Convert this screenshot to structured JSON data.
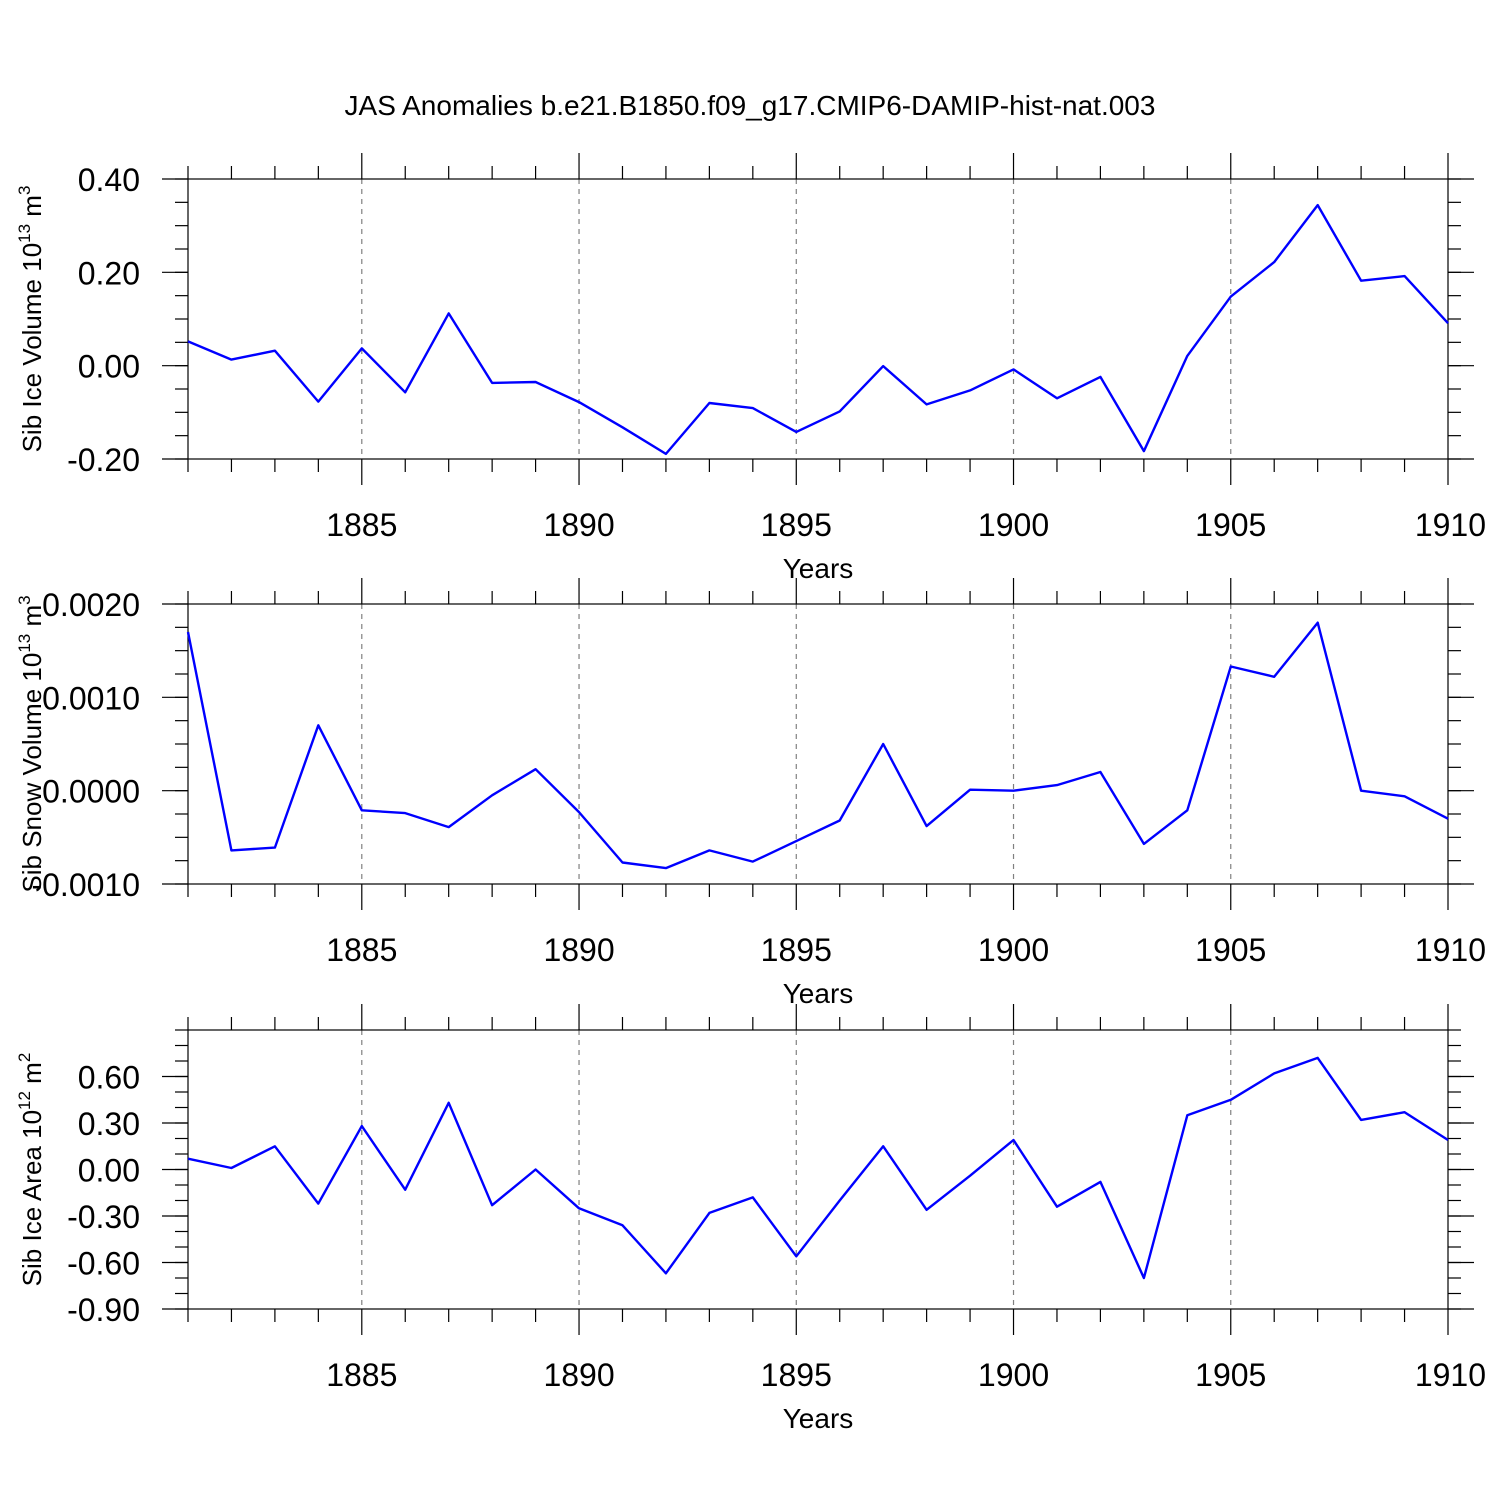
{
  "title": "JAS Anomalies b.e21.B1850.f09_g17.CMIP6-DAMIP-hist-nat.003",
  "line_color": "#0000ff",
  "chart_data": [
    {
      "type": "line",
      "name": "sib-ice-volume",
      "ylabel": {
        "text": "Sib Ice Volume 10",
        "exp": "13",
        "unit": " m",
        "unit_exp": "3"
      },
      "xlabel": "Years",
      "xlim": [
        1881,
        1910
      ],
      "xticks": [
        1885,
        1890,
        1895,
        1900,
        1905,
        1910
      ],
      "ylim": [
        -0.2,
        0.4
      ],
      "yticks": [
        -0.2,
        0.0,
        0.2,
        0.4
      ],
      "ytick_labels": [
        "-0.20",
        "0.00",
        "0.20",
        "0.40"
      ],
      "yminor_step": 0.05,
      "x": [
        1881,
        1882,
        1883,
        1884,
        1885,
        1886,
        1887,
        1888,
        1889,
        1890,
        1891,
        1892,
        1893,
        1894,
        1895,
        1896,
        1897,
        1898,
        1899,
        1900,
        1901,
        1902,
        1903,
        1904,
        1905,
        1906,
        1907,
        1908,
        1909,
        1910
      ],
      "values": [
        0.052,
        0.013,
        0.032,
        -0.077,
        0.037,
        -0.057,
        0.112,
        -0.037,
        -0.035,
        -0.078,
        -0.132,
        -0.189,
        -0.08,
        -0.091,
        -0.142,
        -0.098,
        -0.001,
        -0.083,
        -0.053,
        -0.008,
        -0.07,
        -0.024,
        -0.183,
        0.021,
        0.148,
        0.222,
        0.344,
        0.182,
        0.192,
        0.091
      ]
    },
    {
      "type": "line",
      "name": "sib-snow-volume",
      "ylabel": {
        "text": "Sib Snow Volume 10",
        "exp": "13",
        "unit": " m",
        "unit_exp": "3"
      },
      "xlabel": "Years",
      "xlim": [
        1881,
        1910
      ],
      "xticks": [
        1885,
        1890,
        1895,
        1900,
        1905,
        1910
      ],
      "ylim": [
        -0.001,
        0.002
      ],
      "yticks": [
        -0.001,
        0.0,
        0.001,
        0.002
      ],
      "ytick_labels": [
        "-0.0010",
        "0.0000",
        "0.0010",
        "0.0020"
      ],
      "yminor_step": 0.00025,
      "x": [
        1881,
        1882,
        1883,
        1884,
        1885,
        1886,
        1887,
        1888,
        1889,
        1890,
        1891,
        1892,
        1893,
        1894,
        1895,
        1896,
        1897,
        1898,
        1899,
        1900,
        1901,
        1902,
        1903,
        1904,
        1905,
        1906,
        1907,
        1908,
        1909,
        1910
      ],
      "values": [
        0.0017,
        -0.00064,
        -0.00061,
        0.0007,
        -0.00021,
        -0.00024,
        -0.00039,
        -5e-05,
        0.00023,
        -0.00023,
        -0.00077,
        -0.00083,
        -0.00064,
        -0.00076,
        -0.00054,
        -0.00032,
        0.0005,
        -0.00038,
        1e-05,
        0.0,
        6e-05,
        0.0002,
        -0.00057,
        -0.00021,
        0.00133,
        0.00122,
        0.0018,
        0.0,
        -6e-05,
        -0.0003
      ]
    },
    {
      "type": "line",
      "name": "sib-ice-area",
      "ylabel": {
        "text": "Sib Ice Area 10",
        "exp": "12",
        "unit": " m",
        "unit_exp": "2"
      },
      "xlabel": "Years",
      "xlim": [
        1881,
        1910
      ],
      "xticks": [
        1885,
        1890,
        1895,
        1900,
        1905,
        1910
      ],
      "ylim": [
        -0.9,
        0.9
      ],
      "yticks": [
        -0.9,
        -0.6,
        -0.3,
        0.0,
        0.3,
        0.6
      ],
      "ytick_labels": [
        "-0.90",
        "-0.60",
        "-0.30",
        "0.00",
        "0.30",
        "0.60"
      ],
      "yminor_step": 0.1,
      "x": [
        1881,
        1882,
        1883,
        1884,
        1885,
        1886,
        1887,
        1888,
        1889,
        1890,
        1891,
        1892,
        1893,
        1894,
        1895,
        1896,
        1897,
        1898,
        1899,
        1900,
        1901,
        1902,
        1903,
        1904,
        1905,
        1906,
        1907,
        1908,
        1909,
        1910
      ],
      "values": [
        0.07,
        0.01,
        0.15,
        -0.22,
        0.28,
        -0.13,
        0.43,
        -0.23,
        0.0,
        -0.25,
        -0.36,
        -0.67,
        -0.28,
        -0.18,
        -0.56,
        -0.2,
        0.15,
        -0.26,
        -0.04,
        0.19,
        -0.24,
        -0.08,
        -0.7,
        0.35,
        0.45,
        0.62,
        0.72,
        0.32,
        0.37,
        0.19
      ]
    }
  ]
}
